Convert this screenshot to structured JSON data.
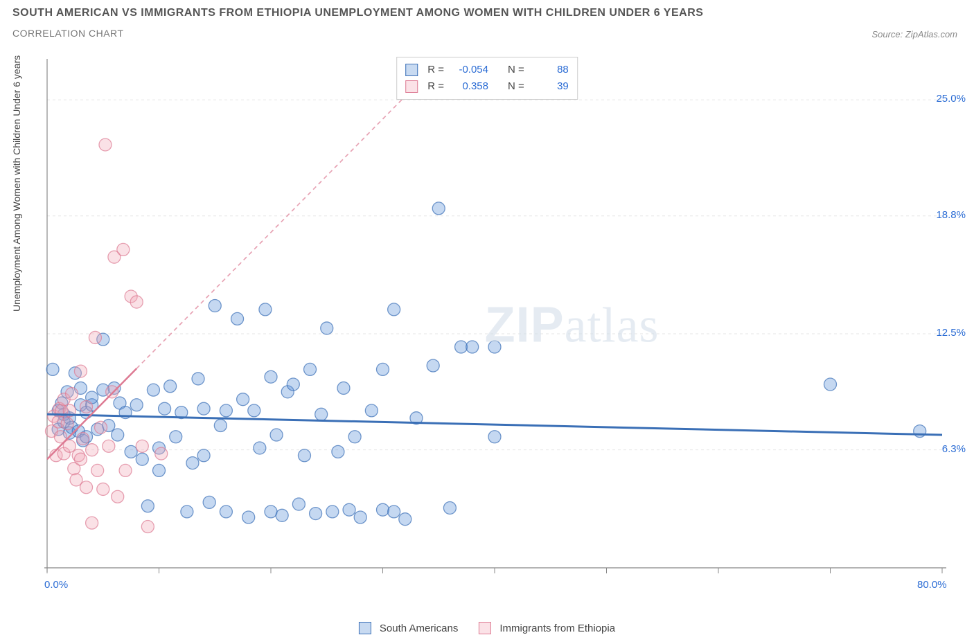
{
  "title": "SOUTH AMERICAN VS IMMIGRANTS FROM ETHIOPIA UNEMPLOYMENT AMONG WOMEN WITH CHILDREN UNDER 6 YEARS",
  "subtitle": "CORRELATION CHART",
  "source": "Source: ZipAtlas.com",
  "y_axis_label": "Unemployment Among Women with Children Under 6 years",
  "watermark_bold": "ZIP",
  "watermark_light": "atlas",
  "chart": {
    "type": "scatter",
    "background_color": "#ffffff",
    "grid_color": "#e6e6e6",
    "axis_color": "#888888",
    "xlim": [
      0,
      80
    ],
    "ylim": [
      0,
      27
    ],
    "x_ticks_minor": [
      0,
      10,
      20,
      30,
      40,
      50,
      60,
      70,
      80
    ],
    "x_ticks_labeled": [
      {
        "value": 0,
        "label": "0.0%"
      },
      {
        "value": 80,
        "label": "80.0%"
      }
    ],
    "y_ticks": [
      {
        "value": 6.3,
        "label": "6.3%"
      },
      {
        "value": 12.5,
        "label": "12.5%"
      },
      {
        "value": 18.8,
        "label": "18.8%"
      },
      {
        "value": 25.0,
        "label": "25.0%"
      }
    ],
    "marker_radius": 9,
    "marker_opacity": 0.35,
    "marker_stroke_opacity": 0.7,
    "series": [
      {
        "name": "South Americans",
        "color": "#5a8fd6",
        "stroke": "#3a6fb6",
        "trend": {
          "x1": 0,
          "y1": 8.2,
          "x2": 80,
          "y2": 7.1,
          "width": 3,
          "dash": "none"
        },
        "R": "-0.054",
        "N": "88",
        "points": [
          [
            0.5,
            10.6
          ],
          [
            1,
            8.4
          ],
          [
            1,
            7.4
          ],
          [
            1.3,
            8.8
          ],
          [
            1.5,
            7.8
          ],
          [
            1.5,
            8.2
          ],
          [
            1.8,
            9.4
          ],
          [
            2,
            7.2
          ],
          [
            2,
            8.0
          ],
          [
            2.2,
            7.5
          ],
          [
            2.5,
            10.4
          ],
          [
            2.8,
            7.3
          ],
          [
            3,
            8.7
          ],
          [
            3,
            9.6
          ],
          [
            3.2,
            6.8
          ],
          [
            3.5,
            7.0
          ],
          [
            3.5,
            8.3
          ],
          [
            4,
            8.7
          ],
          [
            4,
            9.1
          ],
          [
            4.5,
            7.4
          ],
          [
            5,
            12.2
          ],
          [
            5,
            9.5
          ],
          [
            5.5,
            7.6
          ],
          [
            6,
            9.6
          ],
          [
            6.3,
            7.1
          ],
          [
            6.5,
            8.8
          ],
          [
            7,
            8.3
          ],
          [
            7.5,
            6.2
          ],
          [
            8,
            8.7
          ],
          [
            8.5,
            5.8
          ],
          [
            9,
            3.3
          ],
          [
            9.5,
            9.5
          ],
          [
            10,
            5.2
          ],
          [
            10,
            6.4
          ],
          [
            10.5,
            8.5
          ],
          [
            11,
            9.7
          ],
          [
            11.5,
            7.0
          ],
          [
            12,
            8.3
          ],
          [
            12.5,
            3.0
          ],
          [
            13,
            5.6
          ],
          [
            13.5,
            10.1
          ],
          [
            14,
            6.0
          ],
          [
            14,
            8.5
          ],
          [
            14.5,
            3.5
          ],
          [
            15,
            14.0
          ],
          [
            15.5,
            7.6
          ],
          [
            16,
            3.0
          ],
          [
            16,
            8.4
          ],
          [
            17,
            13.3
          ],
          [
            17.5,
            9.0
          ],
          [
            18,
            2.7
          ],
          [
            18.5,
            8.4
          ],
          [
            19,
            6.4
          ],
          [
            19.5,
            13.8
          ],
          [
            20,
            3.0
          ],
          [
            20,
            10.2
          ],
          [
            20.5,
            7.1
          ],
          [
            21,
            2.8
          ],
          [
            21.5,
            9.4
          ],
          [
            22,
            9.8
          ],
          [
            22.5,
            3.4
          ],
          [
            23,
            6.0
          ],
          [
            23.5,
            10.6
          ],
          [
            24,
            2.9
          ],
          [
            24.5,
            8.2
          ],
          [
            25,
            12.8
          ],
          [
            25.5,
            3.0
          ],
          [
            26,
            6.2
          ],
          [
            26.5,
            9.6
          ],
          [
            27,
            3.1
          ],
          [
            27.5,
            7.0
          ],
          [
            28,
            2.7
          ],
          [
            29,
            8.4
          ],
          [
            30,
            3.1
          ],
          [
            30,
            10.6
          ],
          [
            31,
            3.0
          ],
          [
            31,
            13.8
          ],
          [
            32,
            2.6
          ],
          [
            33,
            8.0
          ],
          [
            34.5,
            10.8
          ],
          [
            35,
            19.2
          ],
          [
            36,
            3.2
          ],
          [
            37,
            11.8
          ],
          [
            38,
            11.8
          ],
          [
            40,
            11.8
          ],
          [
            40,
            7.0
          ],
          [
            70,
            9.8
          ],
          [
            78,
            7.3
          ]
        ]
      },
      {
        "name": "Immigrants from Ethiopia",
        "color": "#f2a8b8",
        "stroke": "#dd7a93",
        "trend": {
          "x1": 0,
          "y1": 5.8,
          "x2": 35,
          "y2": 27,
          "width": 2.5,
          "dash": "6,5",
          "solid_until_x": 8
        },
        "R": "0.358",
        "N": "39",
        "points": [
          [
            0.4,
            7.3
          ],
          [
            0.6,
            8.1
          ],
          [
            0.8,
            6.0
          ],
          [
            1.0,
            7.8
          ],
          [
            1.1,
            8.5
          ],
          [
            1.2,
            7.0
          ],
          [
            1.3,
            8.4
          ],
          [
            1.5,
            6.1
          ],
          [
            1.5,
            9.0
          ],
          [
            1.8,
            7.7
          ],
          [
            2.0,
            6.5
          ],
          [
            2.0,
            8.4
          ],
          [
            2.2,
            9.3
          ],
          [
            2.4,
            5.3
          ],
          [
            2.6,
            4.7
          ],
          [
            2.8,
            6.0
          ],
          [
            3.0,
            10.5
          ],
          [
            3.0,
            5.8
          ],
          [
            3.2,
            6.9
          ],
          [
            3.5,
            4.3
          ],
          [
            3.5,
            8.6
          ],
          [
            4.0,
            6.3
          ],
          [
            4.0,
            2.4
          ],
          [
            4.3,
            12.3
          ],
          [
            4.5,
            5.2
          ],
          [
            4.8,
            7.5
          ],
          [
            5.0,
            4.2
          ],
          [
            5.2,
            22.6
          ],
          [
            5.5,
            6.5
          ],
          [
            5.8,
            9.4
          ],
          [
            6.0,
            16.6
          ],
          [
            6.3,
            3.8
          ],
          [
            6.8,
            17.0
          ],
          [
            7.0,
            5.2
          ],
          [
            7.5,
            14.5
          ],
          [
            8.0,
            14.2
          ],
          [
            8.5,
            6.5
          ],
          [
            9.0,
            2.2
          ],
          [
            10.2,
            6.1
          ]
        ]
      }
    ],
    "stats_labels": {
      "R": "R =",
      "N": "N ="
    }
  },
  "colors": {
    "title": "#555555",
    "subtitle": "#777777",
    "tick_label": "#2b6cd4",
    "axis_label": "#444444"
  }
}
